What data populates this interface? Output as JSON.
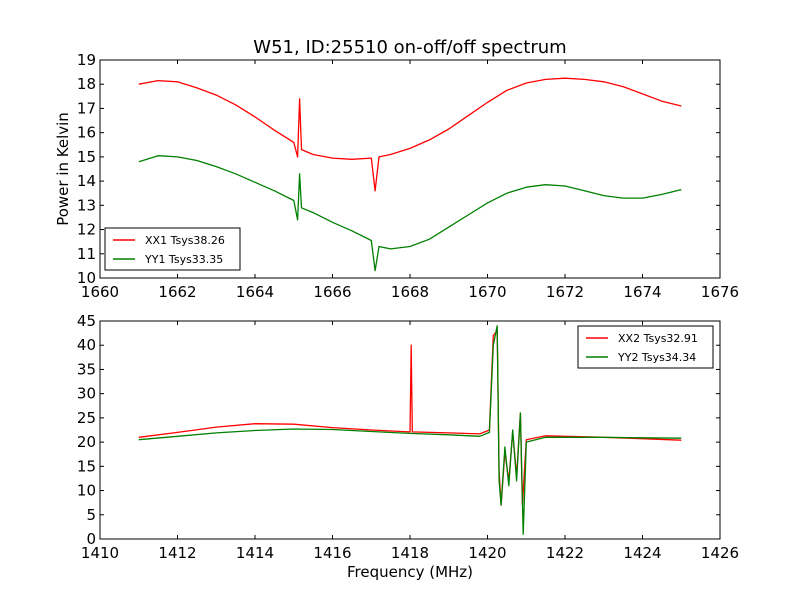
{
  "figure": {
    "title": "W51, ID:25510 on-off/off spectrum",
    "xlabel": "Frequency (MHz)",
    "ylabel": "Power in Kelvin"
  },
  "chart_data": [
    {
      "type": "line",
      "xlim": [
        1660,
        1676
      ],
      "ylim": [
        10,
        19
      ],
      "xticks": [
        1660,
        1662,
        1664,
        1666,
        1668,
        1670,
        1672,
        1674,
        1676
      ],
      "yticks": [
        10,
        11,
        12,
        13,
        14,
        15,
        16,
        17,
        18,
        19
      ],
      "legend": "lower-left",
      "grid": false,
      "series": [
        {
          "name": "XX1 Tsys38.26",
          "color": "#ff0000",
          "x": [
            1661.0,
            1661.5,
            1662.0,
            1662.5,
            1663.0,
            1663.5,
            1664.0,
            1664.5,
            1665.0,
            1665.1,
            1665.15,
            1665.2,
            1665.5,
            1666.0,
            1666.5,
            1667.0,
            1667.1,
            1667.2,
            1667.5,
            1668.0,
            1668.5,
            1669.0,
            1669.5,
            1670.0,
            1670.5,
            1671.0,
            1671.5,
            1672.0,
            1672.5,
            1673.0,
            1673.5,
            1674.0,
            1674.5,
            1675.0
          ],
          "y": [
            18.0,
            18.15,
            18.1,
            17.85,
            17.55,
            17.15,
            16.65,
            16.1,
            15.6,
            15.0,
            17.4,
            15.3,
            15.1,
            14.95,
            14.9,
            14.95,
            13.6,
            15.0,
            15.1,
            15.35,
            15.7,
            16.15,
            16.7,
            17.25,
            17.75,
            18.05,
            18.2,
            18.25,
            18.2,
            18.1,
            17.9,
            17.6,
            17.3,
            17.1
          ]
        },
        {
          "name": "YY1 Tsys33.35",
          "color": "#008000",
          "x": [
            1661.0,
            1661.5,
            1662.0,
            1662.5,
            1663.0,
            1663.5,
            1664.0,
            1664.5,
            1665.0,
            1665.1,
            1665.15,
            1665.2,
            1665.5,
            1666.0,
            1666.5,
            1667.0,
            1667.1,
            1667.2,
            1667.5,
            1668.0,
            1668.5,
            1669.0,
            1669.5,
            1670.0,
            1670.5,
            1671.0,
            1671.5,
            1672.0,
            1672.5,
            1673.0,
            1673.5,
            1674.0,
            1674.5,
            1675.0
          ],
          "y": [
            14.8,
            15.05,
            15.0,
            14.85,
            14.6,
            14.3,
            13.95,
            13.6,
            13.2,
            12.4,
            14.3,
            12.9,
            12.7,
            12.3,
            11.95,
            11.55,
            10.3,
            11.3,
            11.2,
            11.3,
            11.6,
            12.1,
            12.6,
            13.1,
            13.5,
            13.75,
            13.85,
            13.8,
            13.6,
            13.4,
            13.3,
            13.3,
            13.45,
            13.65
          ]
        }
      ]
    },
    {
      "type": "line",
      "xlim": [
        1410,
        1426
      ],
      "ylim": [
        0,
        45
      ],
      "xticks": [
        1410,
        1412,
        1414,
        1416,
        1418,
        1420,
        1422,
        1424,
        1426
      ],
      "yticks": [
        0,
        5,
        10,
        15,
        20,
        25,
        30,
        35,
        40,
        45
      ],
      "legend": "upper-right",
      "grid": false,
      "series": [
        {
          "name": "XX2 Tsys32.91",
          "color": "#ff0000",
          "x": [
            1411.0,
            1412.0,
            1413.0,
            1414.0,
            1415.0,
            1416.0,
            1417.0,
            1418.0,
            1418.03,
            1418.06,
            1419.0,
            1419.8,
            1420.05,
            1420.15,
            1420.25,
            1420.3,
            1420.35,
            1420.45,
            1420.55,
            1420.65,
            1420.75,
            1420.85,
            1420.9,
            1421.0,
            1421.5,
            1422.0,
            1423.0,
            1424.0,
            1425.0
          ],
          "y": [
            21.0,
            22.0,
            23.1,
            23.8,
            23.7,
            23.0,
            22.5,
            22.1,
            40.0,
            22.1,
            21.9,
            21.7,
            22.5,
            42.0,
            43.0,
            14.0,
            7.0,
            18.0,
            12.0,
            22.0,
            13.0,
            26.0,
            7.0,
            20.5,
            21.3,
            21.2,
            21.0,
            20.7,
            20.4
          ]
        },
        {
          "name": "YY2 Tsys34.34",
          "color": "#008000",
          "x": [
            1411.0,
            1412.0,
            1413.0,
            1414.0,
            1415.0,
            1416.0,
            1417.0,
            1418.0,
            1419.0,
            1419.8,
            1420.05,
            1420.15,
            1420.25,
            1420.3,
            1420.35,
            1420.45,
            1420.55,
            1420.65,
            1420.75,
            1420.85,
            1420.92,
            1421.0,
            1421.5,
            1422.0,
            1423.0,
            1424.0,
            1425.0
          ],
          "y": [
            20.5,
            21.2,
            21.9,
            22.4,
            22.7,
            22.6,
            22.2,
            21.8,
            21.5,
            21.2,
            22.0,
            40.0,
            44.0,
            12.0,
            7.0,
            19.0,
            11.0,
            22.5,
            12.0,
            26.0,
            1.0,
            20.0,
            21.0,
            21.0,
            21.0,
            20.9,
            20.8
          ]
        }
      ]
    }
  ]
}
